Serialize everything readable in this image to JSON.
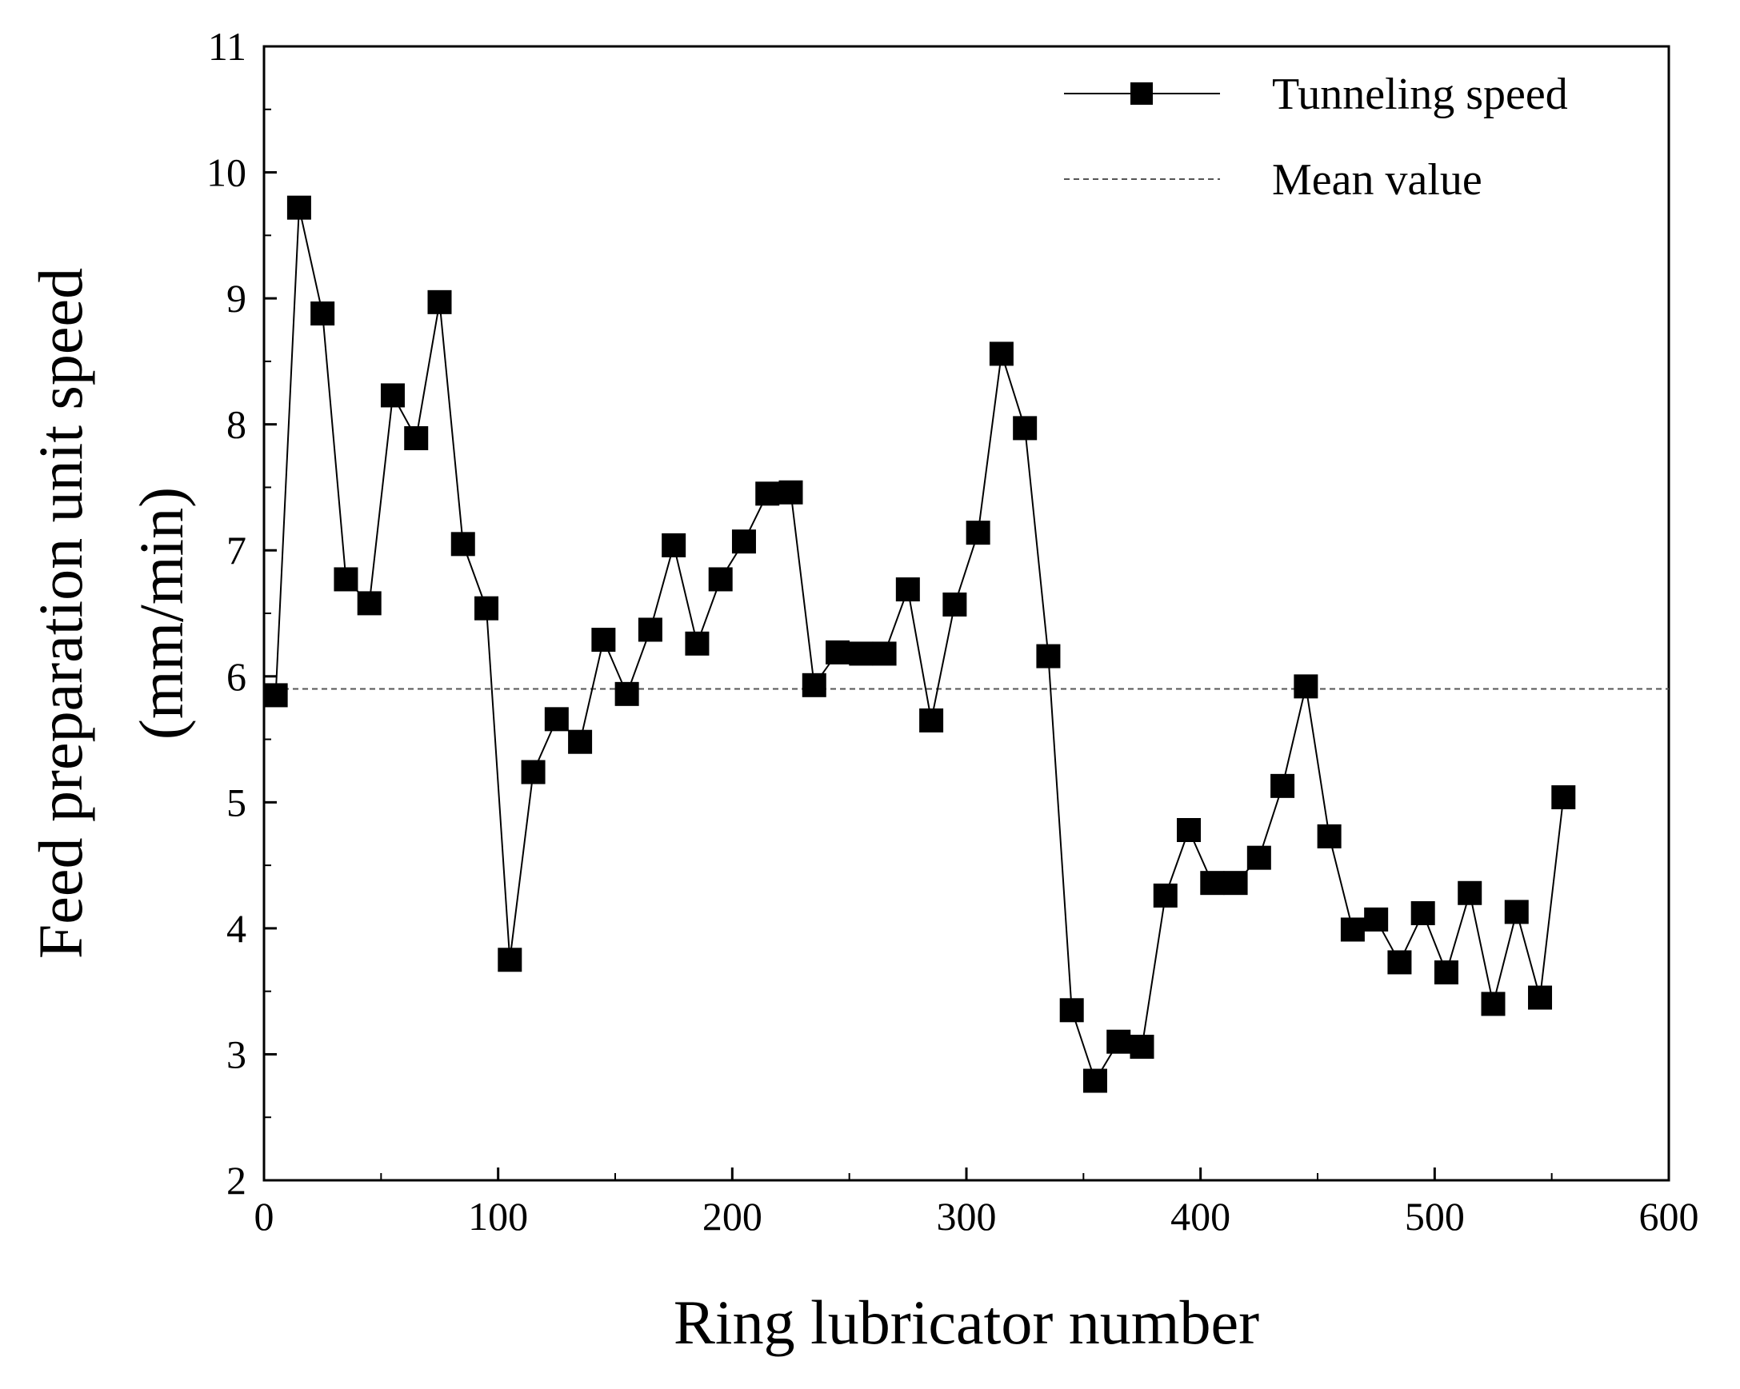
{
  "chart_data": {
    "type": "line",
    "title": "",
    "xlabel": "Ring lubricator number",
    "ylabel_lines": [
      "Feed preparation unit speed",
      "(mm/min)"
    ],
    "xlim": [
      0,
      600
    ],
    "ylim": [
      2,
      11
    ],
    "xticks": [
      0,
      100,
      200,
      300,
      400,
      500,
      600
    ],
    "yticks": [
      2,
      3,
      4,
      5,
      6,
      7,
      8,
      9,
      10,
      11
    ],
    "grid": false,
    "legend_position": "top-right",
    "series": [
      {
        "name": "Tunneling speed",
        "marker": "square",
        "line_style": "solid",
        "color": "#000000",
        "x": [
          5,
          15,
          25,
          35,
          45,
          55,
          65,
          75,
          85,
          95,
          105,
          115,
          125,
          135,
          145,
          155,
          165,
          175,
          185,
          195,
          205,
          215,
          225,
          235,
          245,
          255,
          265,
          275,
          285,
          295,
          305,
          315,
          325,
          335,
          345,
          355,
          365,
          375,
          385,
          395,
          405,
          415,
          425,
          435,
          445,
          455,
          465,
          475,
          485,
          495,
          505,
          515,
          525,
          535,
          545,
          555
        ],
        "y": [
          5.85,
          9.72,
          8.88,
          6.77,
          6.58,
          8.23,
          7.89,
          8.97,
          7.05,
          6.54,
          3.75,
          5.24,
          5.66,
          5.48,
          6.29,
          5.86,
          6.37,
          7.04,
          6.26,
          6.77,
          7.07,
          7.45,
          7.46,
          5.93,
          6.19,
          6.18,
          6.18,
          6.69,
          5.65,
          6.57,
          7.14,
          8.56,
          7.97,
          6.16,
          3.35,
          2.79,
          3.1,
          3.06,
          4.26,
          4.78,
          4.36,
          4.36,
          4.56,
          5.13,
          5.92,
          4.73,
          3.99,
          4.07,
          3.73,
          4.12,
          3.65,
          4.28,
          3.4,
          4.13,
          3.45,
          5.04
        ]
      },
      {
        "name": "Mean value",
        "line_style": "dashed",
        "color": "#555555",
        "y_constant": 5.9
      }
    ]
  }
}
